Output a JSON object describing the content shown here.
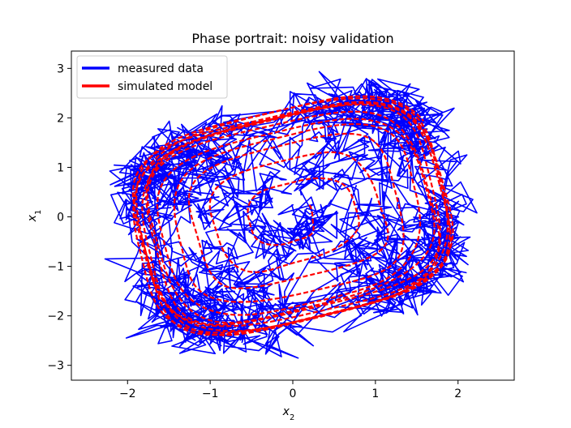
{
  "chart_data": {
    "type": "line",
    "title": "Phase portrait: noisy validation",
    "xlabel": "x",
    "xlabel_sub": "2",
    "ylabel": "x",
    "ylabel_sub": "1",
    "xlim": [
      -2.68,
      2.68
    ],
    "ylim": [
      -3.3,
      3.35
    ],
    "xticks": [
      -2,
      -1,
      0,
      1,
      2
    ],
    "xtick_labels": [
      "−2",
      "−1",
      "0",
      "1",
      "2"
    ],
    "yticks": [
      -3,
      -2,
      -1,
      0,
      1,
      2,
      3
    ],
    "ytick_labels": [
      "−3",
      "−2",
      "−1",
      "0",
      "1",
      "2",
      "3"
    ],
    "grid": false,
    "legend_position": "top-left",
    "series": [
      {
        "name": "measured data",
        "color": "#0000ff",
        "style": "solid",
        "description": "noisy trajectory spiralling outward from origin onto a limit cycle",
        "limit_cycle": {
          "x_range": [
            -2.1,
            2.1
          ],
          "y_range": [
            -2.6,
            2.6
          ]
        },
        "noise": 0.25
      },
      {
        "name": "simulated model",
        "color": "#ff0000",
        "style": "dashed",
        "description": "smooth model trajectory spiralling outward from origin onto the same limit cycle",
        "limit_cycle": {
          "x_range": [
            -2.1,
            2.1
          ],
          "y_range": [
            -2.6,
            2.6
          ]
        }
      }
    ]
  }
}
